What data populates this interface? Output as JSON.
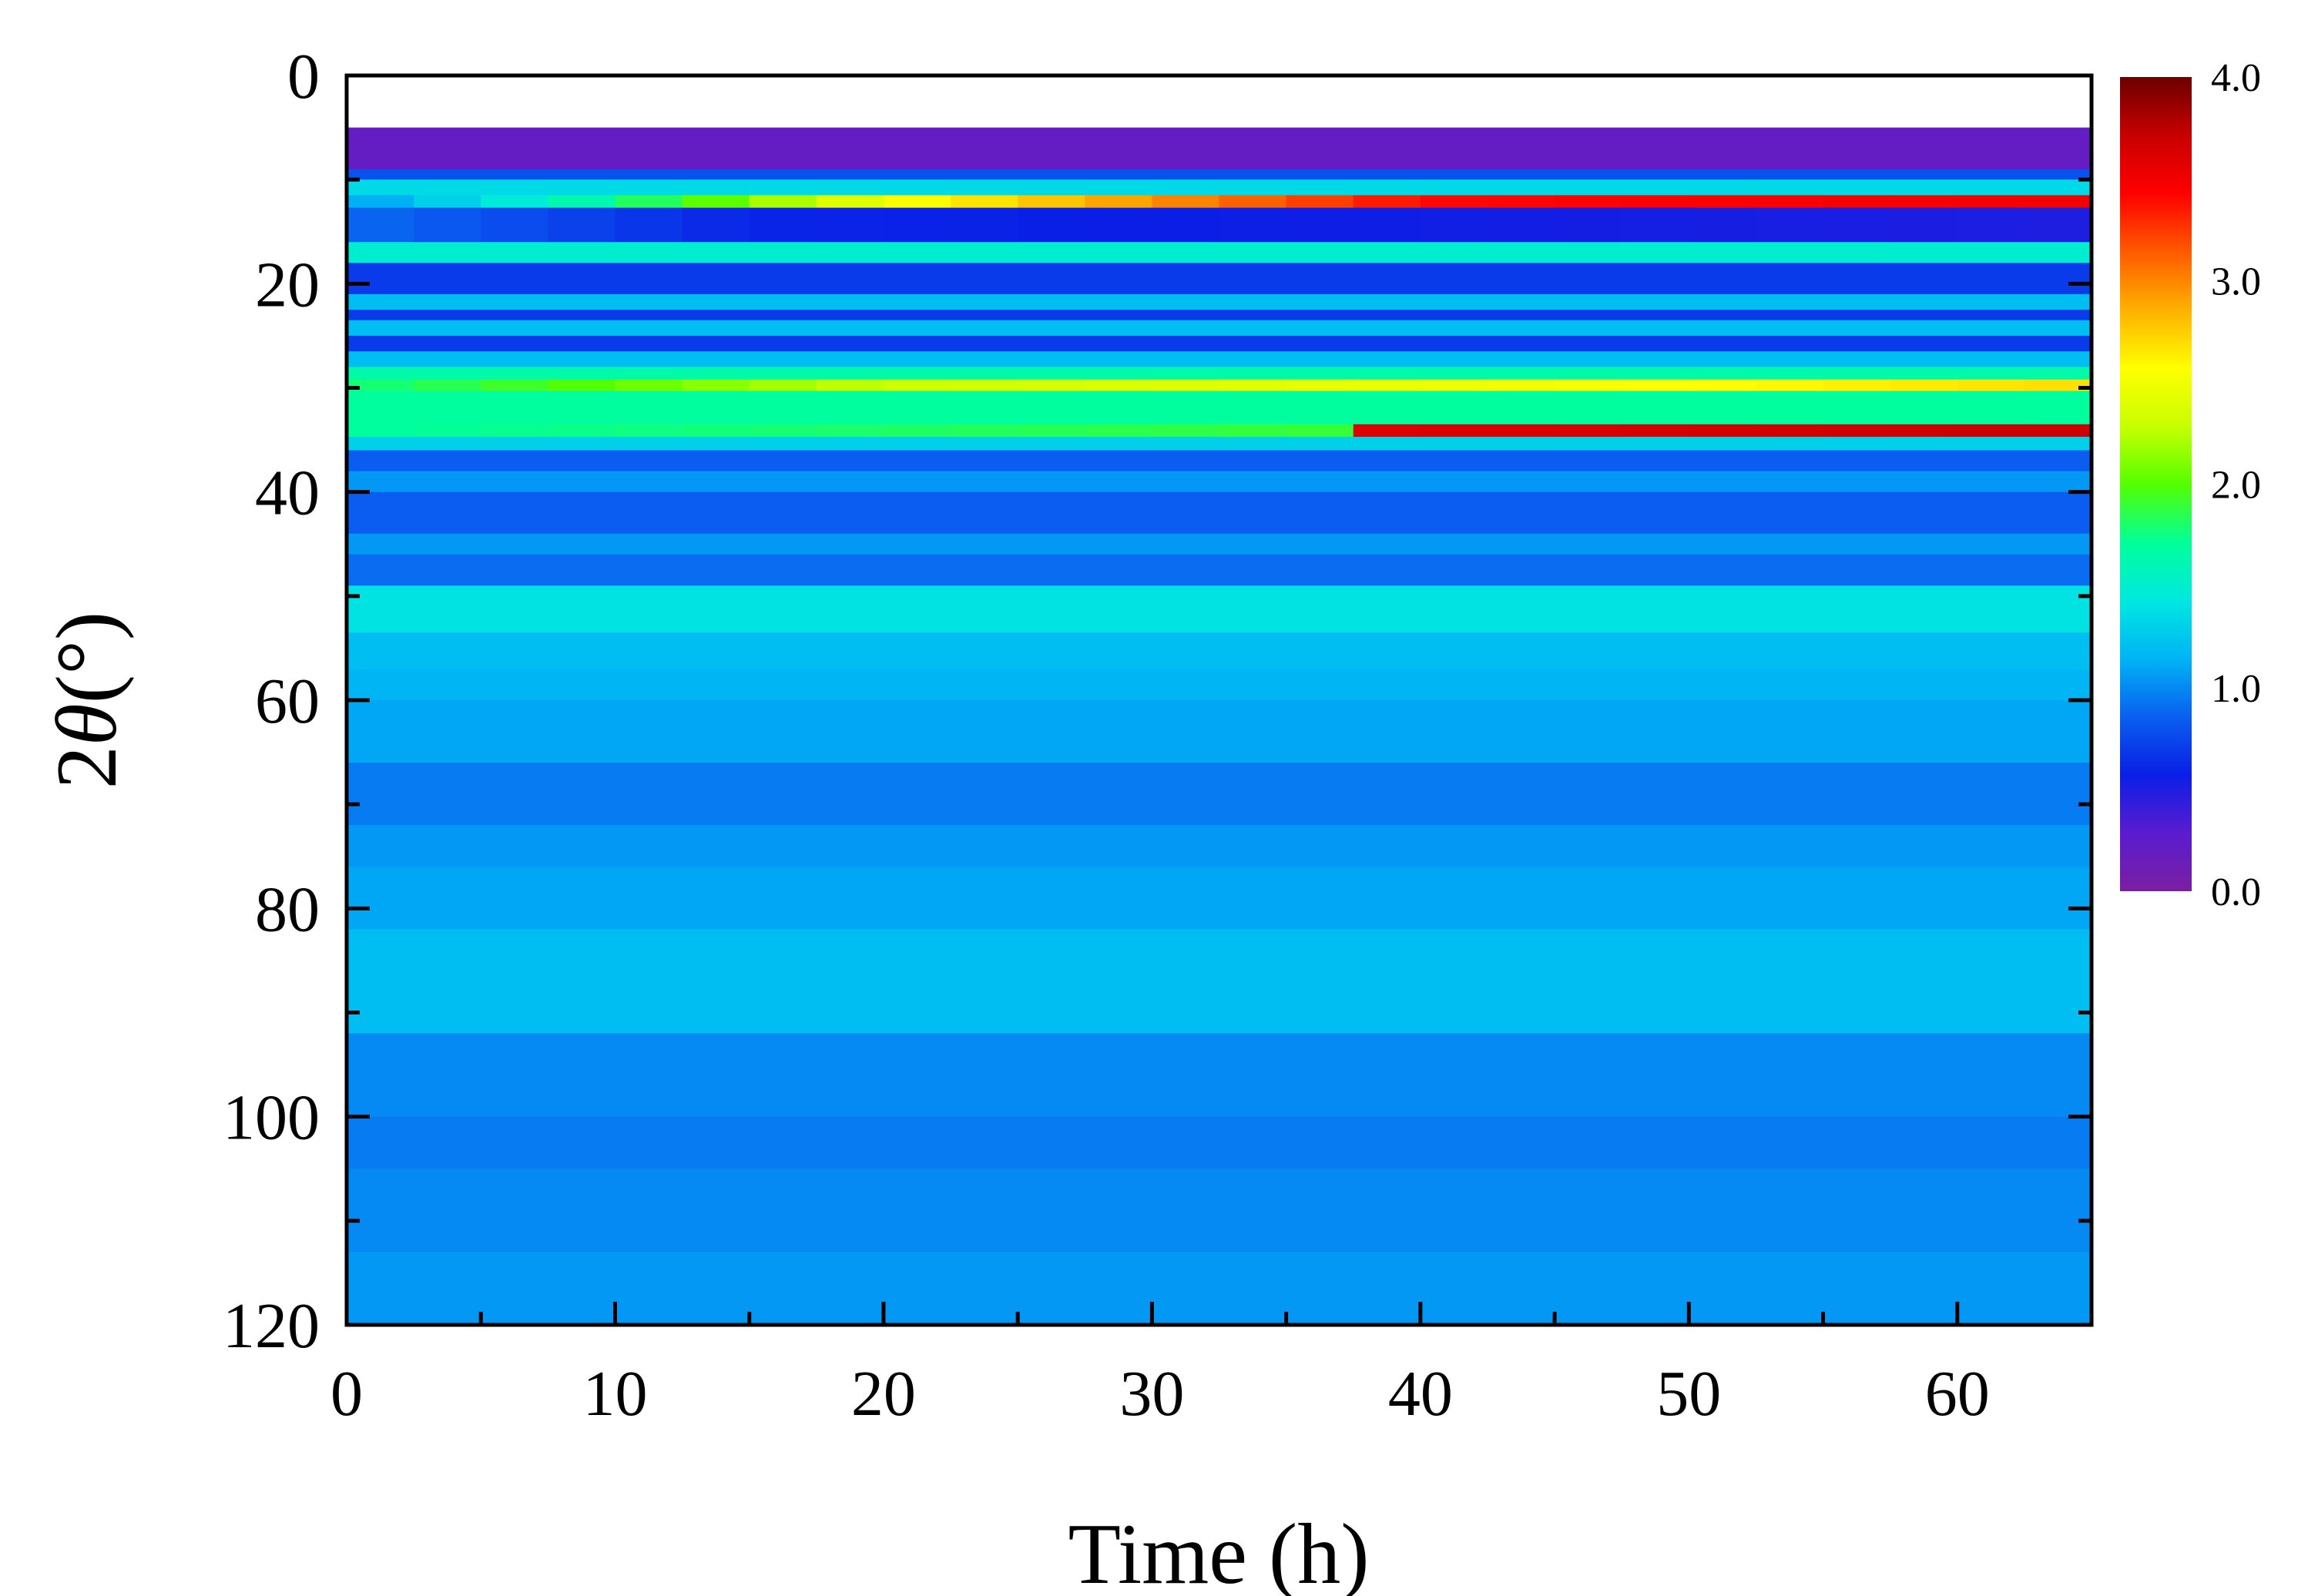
{
  "chart_data": {
    "type": "heatmap",
    "title": "",
    "xlabel": "Time (h)",
    "ylabel_prefix": "2",
    "ylabel_symbol": "θ",
    "ylabel_suffix": "(°)",
    "xlim": [
      0,
      65
    ],
    "ylim": [
      0,
      120
    ],
    "y_inverted": true,
    "x_ticks": [
      0,
      10,
      20,
      30,
      40,
      50,
      60
    ],
    "x_minor_ticks": [
      5,
      15,
      25,
      35,
      45,
      55
    ],
    "y_ticks": [
      0,
      20,
      40,
      60,
      80,
      100,
      120
    ],
    "y_minor_ticks": [
      10,
      30,
      50,
      70,
      90,
      110
    ],
    "data_y_range": [
      5,
      120
    ],
    "colorbar": {
      "range": [
        0,
        4
      ],
      "ticks": [
        "0.0",
        "1.0",
        "2.0",
        "3.0",
        "4.0"
      ],
      "colors": [
        "#7b1fa2",
        "#5a1ccf",
        "#0a1ee6",
        "#0a5ff0",
        "#00b4f5",
        "#00e8e0",
        "#00ff9a",
        "#55ff00",
        "#c8ff00",
        "#ffff00",
        "#ffb000",
        "#ff5a00",
        "#ff0000",
        "#c80000",
        "#6b0000"
      ]
    },
    "bands": [
      {
        "y": [
          5,
          9
        ],
        "value": 0.2
      },
      {
        "y": [
          9,
          10
        ],
        "value": 0.8
      },
      {
        "y": [
          10,
          11.5
        ],
        "value": 1.35
      },
      {
        "y": [
          11.5,
          12.7
        ],
        "value_by_time": [
          [
            0,
            1.05
          ],
          [
            7,
            1.5
          ],
          [
            20,
            2.5
          ],
          [
            40,
            3.4
          ],
          [
            65,
            3.5
          ]
        ]
      },
      {
        "y": [
          12.7,
          16
        ],
        "value_by_time": [
          [
            0,
            0.9
          ],
          [
            15,
            0.6
          ],
          [
            65,
            0.5
          ]
        ]
      },
      {
        "y": [
          16,
          18
        ],
        "value": 1.5
      },
      {
        "y": [
          18,
          21
        ],
        "value": 0.7
      },
      {
        "y": [
          21,
          22.5
        ],
        "value": 1.2
      },
      {
        "y": [
          22.5,
          23.5
        ],
        "value": 0.7
      },
      {
        "y": [
          23.5,
          25
        ],
        "value": 1.2
      },
      {
        "y": [
          25,
          26.5
        ],
        "value": 0.7
      },
      {
        "y": [
          26.5,
          28
        ],
        "value": 1.2
      },
      {
        "y": [
          28,
          29.2
        ],
        "value": 1.65
      },
      {
        "y": [
          29.2,
          30.3
        ],
        "value_by_time": [
          [
            0,
            1.75
          ],
          [
            20,
            2.3
          ],
          [
            65,
            2.7
          ]
        ]
      },
      {
        "y": [
          30.3,
          33.5
        ],
        "value": 1.7
      },
      {
        "y": [
          33.5,
          34.7
        ],
        "value_by_time": [
          [
            0,
            1.7
          ],
          [
            37,
            1.9
          ],
          [
            37.5,
            3.6
          ],
          [
            65,
            3.7
          ]
        ]
      },
      {
        "y": [
          34.7,
          36
        ],
        "value": 1.3
      },
      {
        "y": [
          36,
          38
        ],
        "value": 0.85
      },
      {
        "y": [
          38,
          40
        ],
        "value": 1.05
      },
      {
        "y": [
          40,
          44
        ],
        "value": 0.85
      },
      {
        "y": [
          44,
          46
        ],
        "value": 1.05
      },
      {
        "y": [
          46,
          49
        ],
        "value": 0.9
      },
      {
        "y": [
          49,
          53.5
        ],
        "value": 1.4
      },
      {
        "y": [
          53.5,
          57
        ],
        "value": 1.2
      },
      {
        "y": [
          57,
          60
        ],
        "value": 1.15
      },
      {
        "y": [
          60,
          66
        ],
        "value": 1.1
      },
      {
        "y": [
          66,
          72
        ],
        "value": 0.95
      },
      {
        "y": [
          72,
          76
        ],
        "value": 1.05
      },
      {
        "y": [
          76,
          82
        ],
        "value": 1.1
      },
      {
        "y": [
          82,
          92
        ],
        "value": 1.2
      },
      {
        "y": [
          92,
          100
        ],
        "value": 1.0
      },
      {
        "y": [
          100,
          105
        ],
        "value": 0.95
      },
      {
        "y": [
          105,
          113
        ],
        "value": 1.0
      },
      {
        "y": [
          113,
          120
        ],
        "value": 1.05
      }
    ]
  }
}
